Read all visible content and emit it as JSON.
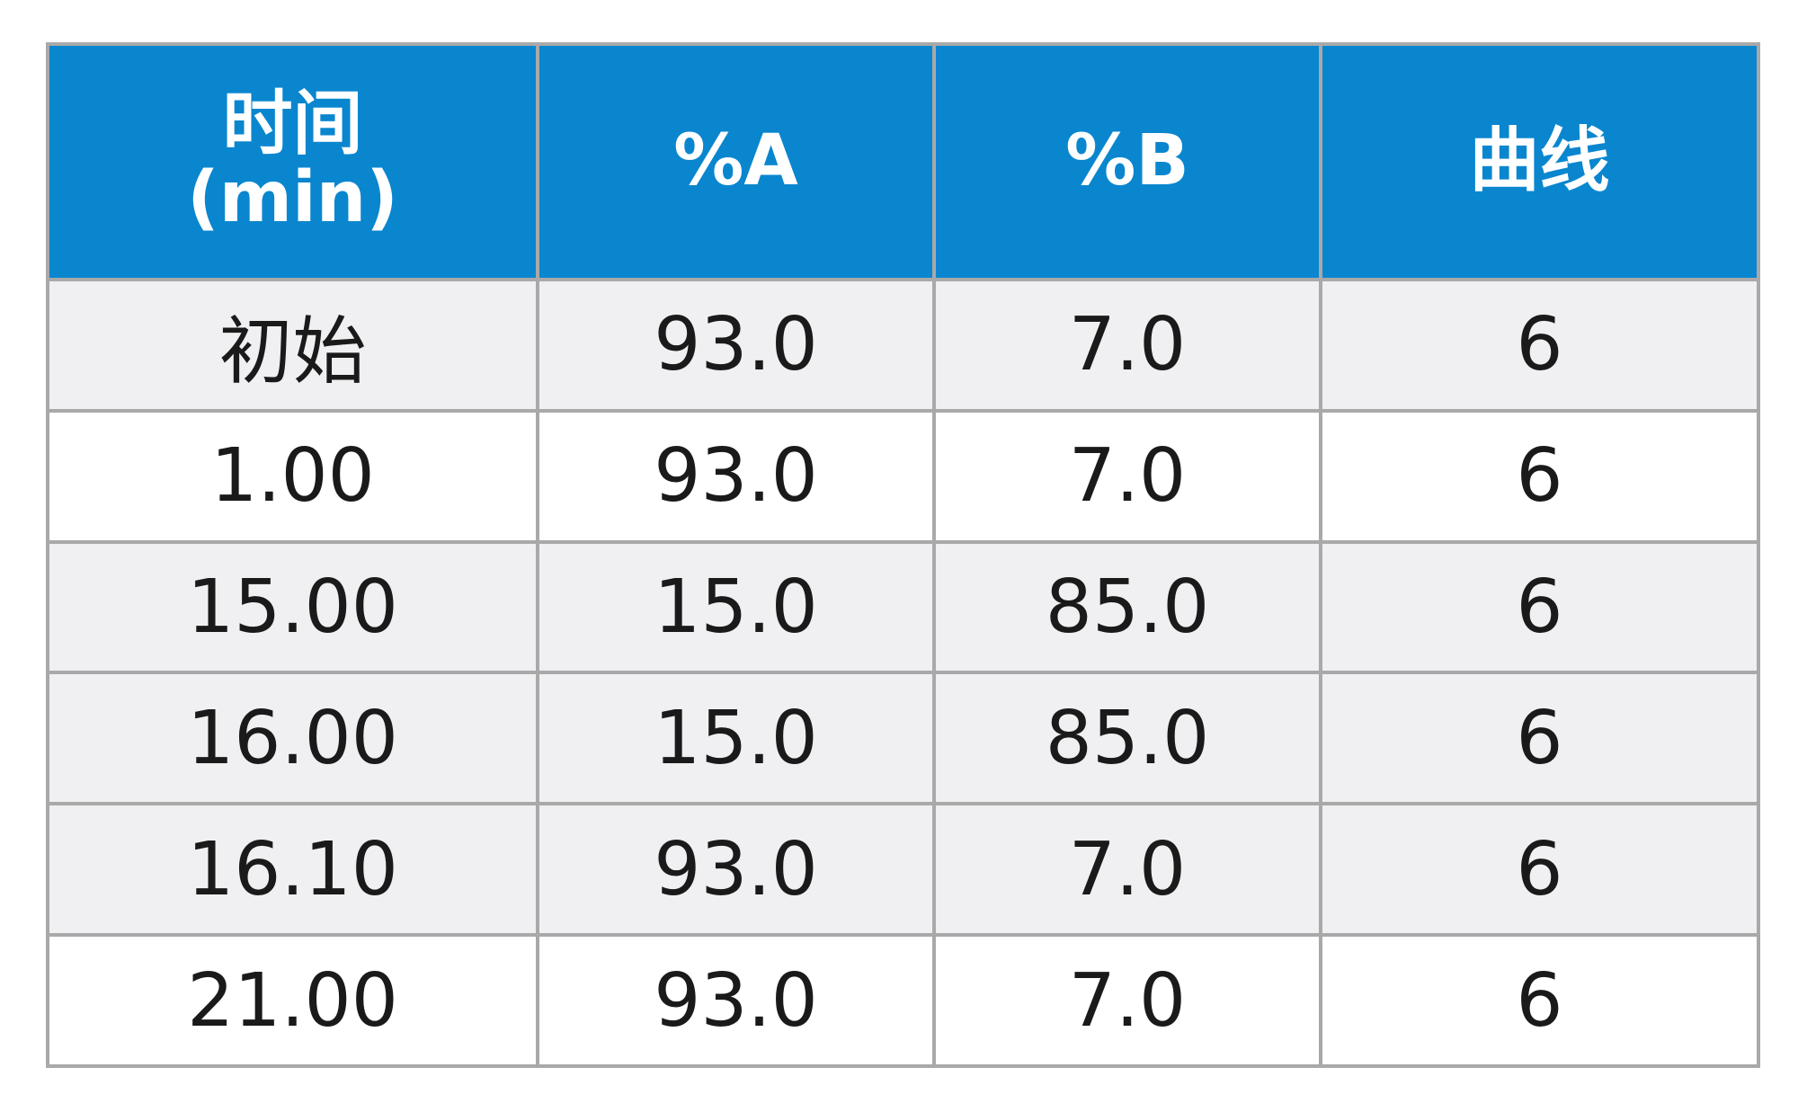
{
  "table": {
    "header": {
      "time_line1": "时间",
      "time_line2": "(min)",
      "col_a": "%A",
      "col_b": "%B",
      "curve": "曲线"
    },
    "colors": {
      "header_bg": "#0a86cf",
      "header_text": "#ffffff",
      "row_shaded": "#f0f0f3",
      "row_plain": "#ffffff",
      "border": "#a9a9a9"
    },
    "rows": [
      {
        "time": "初始",
        "a": "93.0",
        "b": "7.0",
        "curve": "6"
      },
      {
        "time": "1.00",
        "a": "93.0",
        "b": "7.0",
        "curve": "6"
      },
      {
        "time": "15.00",
        "a": "15.0",
        "b": "85.0",
        "curve": "6"
      },
      {
        "time": "16.00",
        "a": "15.0",
        "b": "85.0",
        "curve": "6"
      },
      {
        "time": "16.10",
        "a": "93.0",
        "b": "7.0",
        "curve": "6"
      },
      {
        "time": "21.00",
        "a": "93.0",
        "b": "7.0",
        "curve": "6"
      }
    ]
  }
}
